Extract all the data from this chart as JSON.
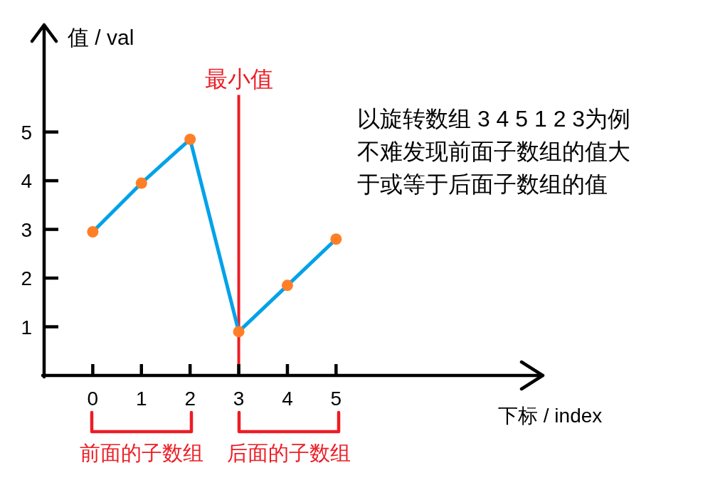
{
  "chart_data": {
    "type": "line",
    "xlabel": "下标 / index",
    "ylabel": "值 / val",
    "annotations": [
      "以旋转数组 3 4 5 1 2 3为例不难发现前面子数组的值大于或等于后面子数组的值",
      "前面的子数组",
      "后面的子数组"
    ],
    "x": [
      0,
      1,
      2,
      3,
      4,
      5
    ],
    "series": [
      {
        "color": "#00a2e8",
        "colors": [
          "#ff7f27",
          "#ff7f27",
          "#ff7f27",
          "#ff7f27",
          "#ff7f27",
          "#ff7f27"
        ],
        "values": [
          2.95,
          3.95,
          4.85,
          0.9,
          1.85,
          2.8
        ]
      }
    ],
    "marker": "circle",
    "line_style": "solid",
    "xlim": [
      -1,
      9.25
    ],
    "xticks": [
      0,
      1,
      2,
      3,
      4,
      5
    ],
    "ylim": [
      0,
      7.2
    ],
    "yticks": [
      1,
      2,
      3,
      4,
      5
    ],
    "ref_lines": [
      {
        "axis": "x",
        "value": 3,
        "label": "最小值",
        "color": "#ed1c24"
      }
    ]
  }
}
